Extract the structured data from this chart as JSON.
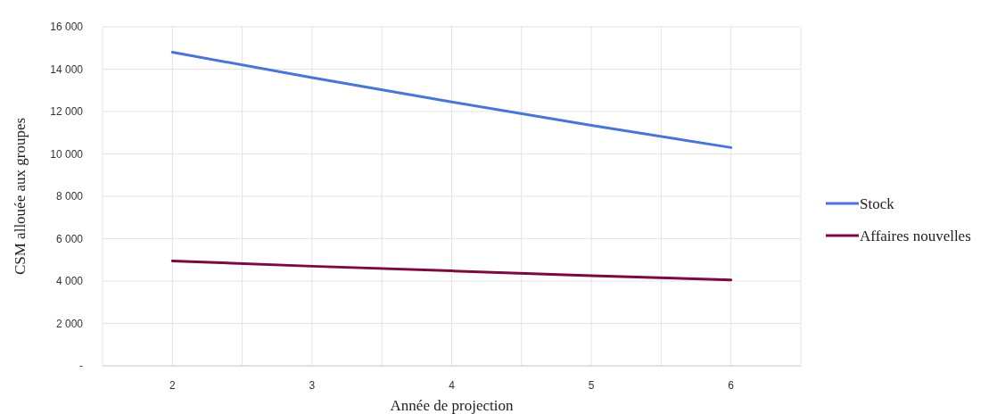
{
  "chart_data": {
    "type": "line",
    "xlabel": "Année de projection",
    "ylabel": "CSM allouée aux groupes",
    "x": [
      2,
      3,
      4,
      5,
      6
    ],
    "xlim": [
      1.5,
      6.5
    ],
    "xticks": [
      {
        "value": 1.5,
        "label": null
      },
      2,
      {
        "value": 2.5,
        "label": null
      },
      3,
      {
        "value": 3.5,
        "label": null
      },
      4,
      {
        "value": 4.5,
        "label": null
      },
      5,
      {
        "value": 5.5,
        "label": null
      },
      6,
      {
        "value": 6.5,
        "label": null
      }
    ],
    "ylim": [
      0,
      16000
    ],
    "yticks": [
      {
        "value": 0,
        "label": "-"
      },
      {
        "value": 2000,
        "label": "2 000"
      },
      {
        "value": 4000,
        "label": "4 000"
      },
      {
        "value": 6000,
        "label": "6 000"
      },
      {
        "value": 8000,
        "label": "8 000"
      },
      {
        "value": 10000,
        "label": "10 000"
      },
      {
        "value": 12000,
        "label": "12 000"
      },
      {
        "value": 14000,
        "label": "14 000"
      },
      {
        "value": 16000,
        "label": "16 000"
      }
    ],
    "grid": true,
    "legend": "right",
    "marker": "none",
    "line_style": "solid",
    "series": [
      {
        "name": "Stock",
        "color": "#4a74d6",
        "values": [
          14800,
          13600,
          12450,
          11350,
          10300
        ]
      },
      {
        "name": "Affaires nouvelles",
        "color": "#7b0a3e",
        "values": [
          4950,
          4700,
          4480,
          4250,
          4050
        ]
      }
    ]
  }
}
